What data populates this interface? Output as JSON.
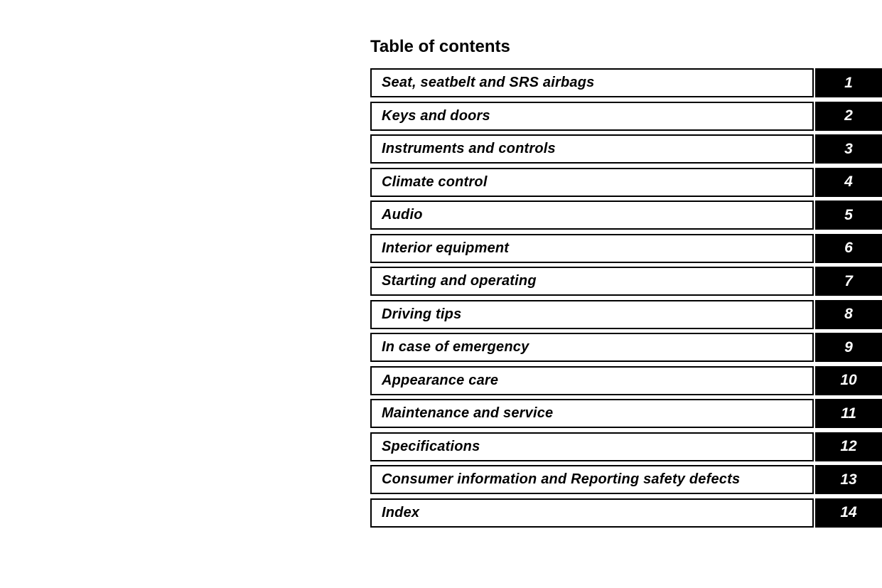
{
  "page": {
    "title": "Table of contents"
  },
  "colors": {
    "page_bg": "#ffffff",
    "text": "#000000",
    "box_border": "#000000",
    "tab_bg": "#000000",
    "tab_text": "#ffffff"
  },
  "toc": {
    "entries": [
      {
        "label": "Seat, seatbelt and SRS airbags",
        "number": "1"
      },
      {
        "label": "Keys and doors",
        "number": "2"
      },
      {
        "label": "Instruments and controls",
        "number": "3"
      },
      {
        "label": "Climate control",
        "number": "4"
      },
      {
        "label": "Audio",
        "number": "5"
      },
      {
        "label": "Interior equipment",
        "number": "6"
      },
      {
        "label": "Starting and operating",
        "number": "7"
      },
      {
        "label": "Driving tips",
        "number": "8"
      },
      {
        "label": "In case of emergency",
        "number": "9"
      },
      {
        "label": "Appearance care",
        "number": "10"
      },
      {
        "label": "Maintenance and service",
        "number": "11"
      },
      {
        "label": "Specifications",
        "number": "12"
      },
      {
        "label": "Consumer information and Reporting safety defects",
        "number": "13"
      },
      {
        "label": "Index",
        "number": "14"
      }
    ]
  }
}
